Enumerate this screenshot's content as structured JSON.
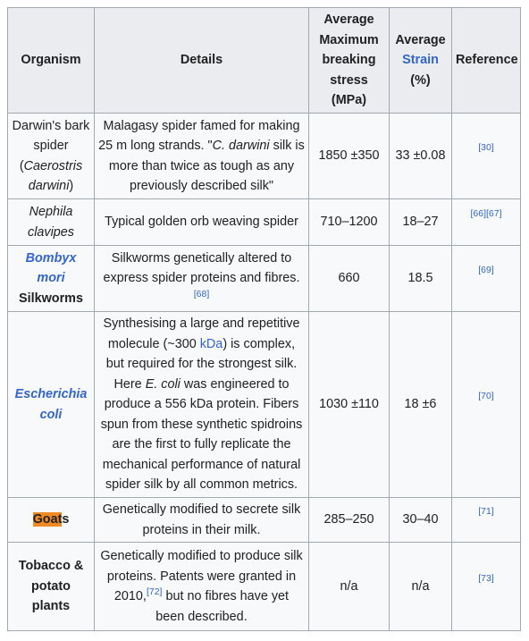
{
  "headers": {
    "organism": "Organism",
    "details": "Details",
    "stress_line1": "Average",
    "stress_line2": "Maximum",
    "stress_line3": "breaking",
    "stress_line4": "stress",
    "stress_line5": "(MPa)",
    "strain_line1": "Average",
    "strain_link": "Strain",
    "strain_unit": "(%)",
    "reference": "Reference"
  },
  "rows": [
    {
      "org_plain": "Darwin's bark spider",
      "org_open": "(",
      "org_italic": "Caerostris darwini",
      "org_close": ")",
      "details": "Malagasy spider famed for making 25 m long strands. \"",
      "details_italic": "C. darwini",
      "details_rest": " silk is more than twice as tough as any previously described silk\"",
      "stress": "1850 ±350",
      "strain": "33 ±0.08",
      "ref": "[30]"
    },
    {
      "org_italic": "Nephila clavipes",
      "details": "Typical golden orb weaving spider",
      "stress": "710–1200",
      "strain": "18–27",
      "ref": "[66][67]"
    },
    {
      "org_link": "Bombyx mori",
      "org_plain": "Silkworms",
      "details": "Silkworms genetically altered to express spider proteins and fibres.",
      "details_ref": "[68]",
      "stress": "660",
      "strain": "18.5",
      "ref": "[69]"
    },
    {
      "org_link1": "Escherichia",
      "org_link2": "coli",
      "details_a": "Synthesising a large and repetitive molecule (~300 ",
      "details_link": "kDa",
      "details_b": ") is complex, but required for the strongest silk. Here ",
      "details_italic": "E. coli",
      "details_c": " was engineered to produce a 556 kDa protein. Fibers spun from these synthetic spidroins are the first to fully replicate the mechanical performance of natural spider silk by all common metrics.",
      "stress": "1030 ±110",
      "strain": "18 ±6",
      "ref": "[70]"
    },
    {
      "org_hl": "Goat",
      "org_rest": "s",
      "details": "Genetically modified to secrete silk proteins in their milk.",
      "stress": "285–250",
      "strain": "30–40",
      "ref": "[71]"
    },
    {
      "org_plain": "Tobacco & potato plants",
      "details_a": "Genetically modified to produce silk proteins. Patents were granted in 2010,",
      "details_ref": "[72]",
      "details_b": " but no fibres have yet been described.",
      "stress": "n/a",
      "strain": "n/a",
      "ref": "[73]"
    }
  ]
}
